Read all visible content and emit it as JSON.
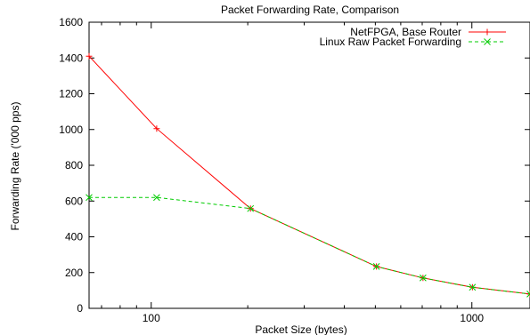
{
  "chart_data": {
    "type": "line",
    "title": "Packet Forwarding Rate, Comparison",
    "xlabel": "Packet Size (bytes)",
    "ylabel": "Forwarding Rate ('000 pps)",
    "x_scale": "log",
    "xlim": [
      64,
      1518
    ],
    "ylim": [
      0,
      1600
    ],
    "x_ticks": [
      100,
      1000
    ],
    "x_tick_labels": [
      "100",
      "1000"
    ],
    "y_ticks": [
      0,
      200,
      400,
      600,
      800,
      1000,
      1200,
      1400,
      1600
    ],
    "y_tick_labels": [
      "0",
      "200",
      "400",
      "600",
      "800",
      "1000",
      "1200",
      "1400",
      "1600"
    ],
    "grid": false,
    "legend_position": "top-right",
    "series": [
      {
        "name": "NetFPGA, Base Router",
        "color": "#ff0000",
        "marker": "plus",
        "x": [
          64,
          104,
          204,
          504,
          704,
          1004,
          1518
        ],
        "y": [
          1410,
          1005,
          558,
          234,
          170,
          118,
          80
        ]
      },
      {
        "name": "Linux Raw Packet Forwarding",
        "color": "#00cc00",
        "dashed": true,
        "marker": "cross",
        "x": [
          64,
          104,
          204,
          504,
          704,
          1004,
          1518
        ],
        "y": [
          620,
          620,
          558,
          234,
          170,
          118,
          80
        ]
      }
    ]
  }
}
